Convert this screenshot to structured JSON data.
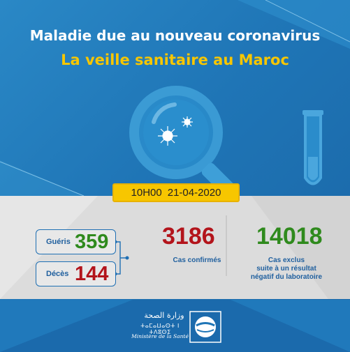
{
  "header": {
    "title": "Maladie due au nouveau coronavirus",
    "subtitle": "La veille sanitaire au Maroc"
  },
  "report": {
    "time": "10H00",
    "date": "21-04-2020"
  },
  "stats": {
    "gueris_label": "Guéris",
    "gueris_value": "359",
    "deces_label": "Décès",
    "deces_value": "144",
    "confirmed_value": "3186",
    "confirmed_caption": "Cas confirmés",
    "exclus_value": "14018",
    "exclus_caption_line1": "Cas exclus",
    "exclus_caption_line2": "suite à un résultat",
    "exclus_caption_line3": "négatif du laboratoire"
  },
  "footer": {
    "ministry_ar": "وزارة الصحة",
    "ministry_tifinagh": "ⵜⴰⵎⴰⵡⴰⵙⵜ ⵏ ⵜⴷⵓⵙⵉ",
    "ministry_fr": "Ministère de la Santé"
  },
  "colors": {
    "background": "#1f75b6",
    "accent_yellow": "#f7c600",
    "recovered_green": "#2f8a1d",
    "deaths_red": "#b3141b",
    "label_blue": "#1f5f9e"
  },
  "icons": [
    "magnifier-icon",
    "virus-icon",
    "test-tube-icon",
    "ministry-logo-icon"
  ]
}
